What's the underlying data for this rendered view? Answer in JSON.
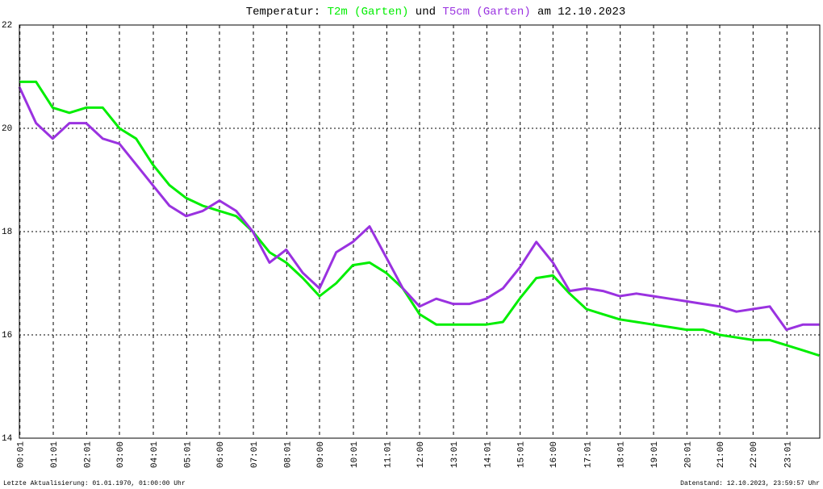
{
  "chart_data": {
    "type": "line",
    "title_prefix": "Temperatur:",
    "title_joiner": "und",
    "title_suffix": "am 12.10.2023",
    "footer_left": "Letzte Aktualisierung: 01.01.1970, 01:00:00 Uhr",
    "footer_right": "Datenstand: 12.10.2023, 23:59:57 Uhr",
    "x": [
      "00:00",
      "00:30",
      "01:00",
      "01:30",
      "02:00",
      "02:30",
      "03:00",
      "03:30",
      "04:00",
      "04:30",
      "05:00",
      "05:30",
      "06:00",
      "06:30",
      "07:00",
      "07:30",
      "08:00",
      "08:30",
      "09:00",
      "09:30",
      "10:00",
      "10:30",
      "11:00",
      "11:30",
      "12:00",
      "12:30",
      "13:00",
      "13:30",
      "14:00",
      "14:30",
      "15:00",
      "15:30",
      "16:00",
      "16:30",
      "17:00",
      "17:30",
      "18:00",
      "18:30",
      "19:00",
      "19:30",
      "20:00",
      "20:30",
      "21:00",
      "21:30",
      "22:00",
      "22:30",
      "23:00",
      "23:30",
      "23:59"
    ],
    "series": [
      {
        "name": "T2m (Garten)",
        "color": "#00ee00",
        "values": [
          20.9,
          20.9,
          20.4,
          20.3,
          20.4,
          20.4,
          20.0,
          19.8,
          19.3,
          18.9,
          18.65,
          18.5,
          18.4,
          18.3,
          18.0,
          17.6,
          17.4,
          17.1,
          16.75,
          17.0,
          17.35,
          17.4,
          17.2,
          16.9,
          16.4,
          16.2,
          16.2,
          16.2,
          16.2,
          16.25,
          16.7,
          17.1,
          17.15,
          16.8,
          16.5,
          16.4,
          16.3,
          16.25,
          16.2,
          16.15,
          16.1,
          16.1,
          16.0,
          15.95,
          15.9,
          15.9,
          15.8,
          15.7,
          15.6
        ]
      },
      {
        "name": "T5cm (Garten)",
        "color": "#9a32e0",
        "values": [
          20.8,
          20.1,
          19.8,
          20.1,
          20.1,
          19.8,
          19.7,
          19.3,
          18.9,
          18.5,
          18.3,
          18.4,
          18.6,
          18.4,
          18.0,
          17.4,
          17.65,
          17.2,
          16.9,
          17.6,
          17.8,
          18.1,
          17.5,
          16.9,
          16.55,
          16.7,
          16.6,
          16.6,
          16.7,
          16.9,
          17.3,
          17.8,
          17.4,
          16.85,
          16.9,
          16.85,
          16.75,
          16.8,
          16.75,
          16.7,
          16.65,
          16.6,
          16.55,
          16.45,
          16.5,
          16.55,
          16.1,
          16.2,
          16.2
        ]
      }
    ],
    "xlim": [
      "00:00",
      "24:00"
    ],
    "xticks": [
      "00:01",
      "01:01",
      "02:01",
      "03:00",
      "04:01",
      "05:01",
      "06:00",
      "07:01",
      "08:01",
      "09:00",
      "10:01",
      "11:01",
      "12:00",
      "13:01",
      "14:01",
      "15:01",
      "16:00",
      "17:01",
      "18:01",
      "19:01",
      "20:01",
      "21:00",
      "22:00",
      "23:01"
    ],
    "ylim": [
      14,
      22
    ],
    "yticks": [
      14,
      16,
      18,
      20,
      22
    ],
    "grid": true
  }
}
